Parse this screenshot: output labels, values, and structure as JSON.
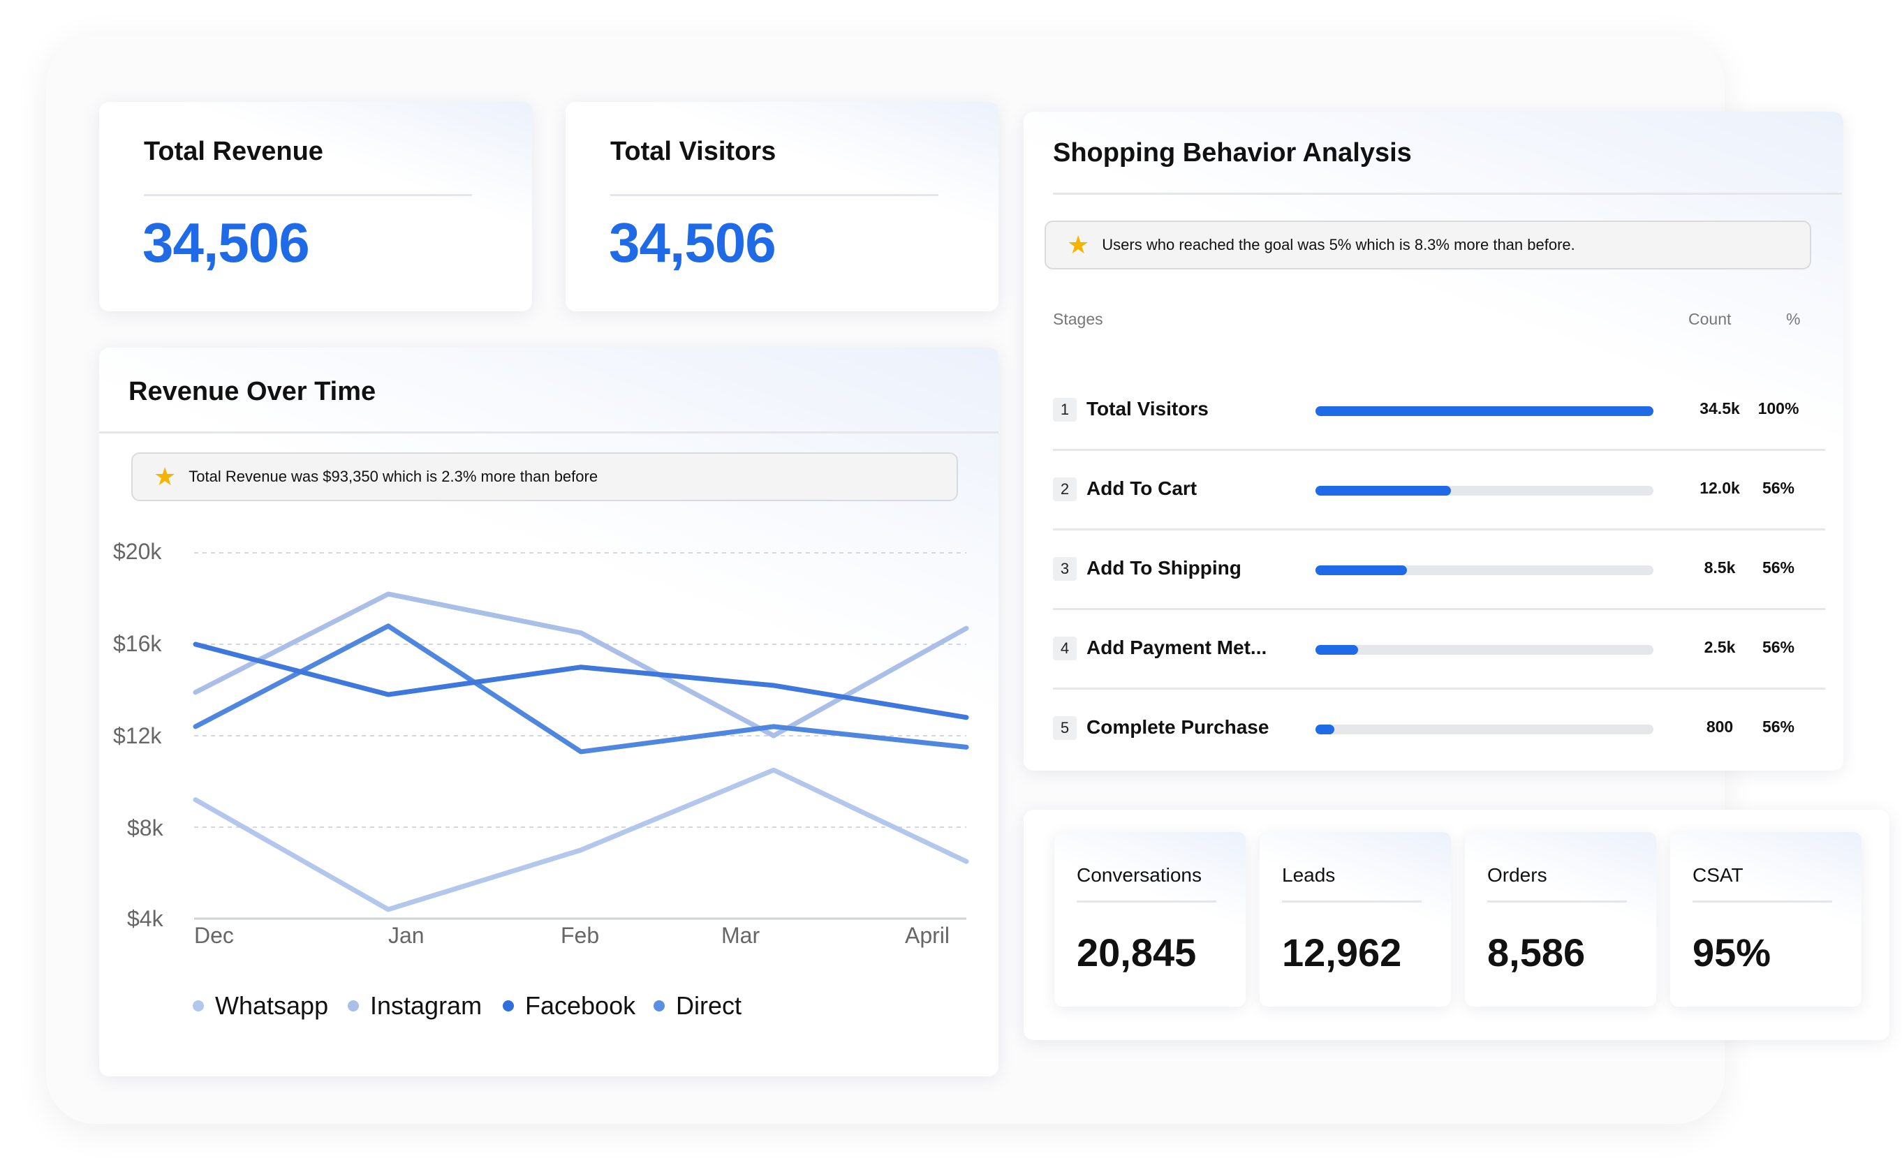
{
  "kpis": {
    "revenue": {
      "label": "Total Revenue",
      "value": "34,506"
    },
    "visitors": {
      "label": "Total Visitors",
      "value": "34,506"
    }
  },
  "revenue_chart": {
    "title": "Revenue Over Time",
    "notice": "Total Revenue was $93,350 which is 2.3% more than before",
    "notice_icon": "star-icon"
  },
  "chart_data": {
    "type": "line",
    "categories": [
      "Dec",
      "Jan",
      "Feb",
      "Mar",
      "April"
    ],
    "y_ticks": [
      "$20k",
      "$16k",
      "$12k",
      "$8k",
      "$4k"
    ],
    "ylim": [
      4,
      20
    ],
    "grid": true,
    "legend_position": "bottom",
    "series": [
      {
        "name": "Whatsapp",
        "color": "#b3c7ec",
        "values": [
          9.2,
          4.4,
          7.0,
          10.5,
          6.5
        ]
      },
      {
        "name": "Instagram",
        "color": "#a9bfe8",
        "values": [
          13.9,
          18.2,
          16.5,
          12.0,
          16.7
        ]
      },
      {
        "name": "Facebook",
        "color": "#4f87e0",
        "values": [
          12.4,
          16.8,
          11.3,
          12.4,
          11.5
        ]
      },
      {
        "name": "Direct",
        "color": "#3e78dc",
        "values": [
          16.0,
          13.8,
          15.0,
          14.2,
          12.8
        ]
      }
    ]
  },
  "shopping": {
    "title": "Shopping Behavior Analysis",
    "notice": "Users who reached the goal was 5% which is 8.3% more than before.",
    "notice_icon": "star-icon",
    "columns": {
      "stages": "Stages",
      "count": "Count",
      "pct": "%"
    },
    "stages": [
      {
        "num": "1",
        "label": "Total Visitors",
        "fill": 1.0,
        "count": "34.5k",
        "pct": "100%"
      },
      {
        "num": "2",
        "label": "Add To Cart",
        "fill": 0.4,
        "count": "12.0k",
        "pct": "56%"
      },
      {
        "num": "3",
        "label": "Add To Shipping",
        "fill": 0.27,
        "count": "8.5k",
        "pct": "56%"
      },
      {
        "num": "4",
        "label": "Add Payment Met...",
        "fill": 0.125,
        "count": "2.5k",
        "pct": "56%"
      },
      {
        "num": "5",
        "label": "Complete Purchase",
        "fill": 0.055,
        "count": "800",
        "pct": "56%"
      }
    ]
  },
  "metrics": [
    {
      "label": "Conversations",
      "value": "20,845"
    },
    {
      "label": "Leads",
      "value": "12,962"
    },
    {
      "label": "Orders",
      "value": "8,586"
    },
    {
      "label": "CSAT",
      "value": "95%"
    }
  ],
  "colors": {
    "accent": "#1f6ae6",
    "star": "#f4b400"
  }
}
